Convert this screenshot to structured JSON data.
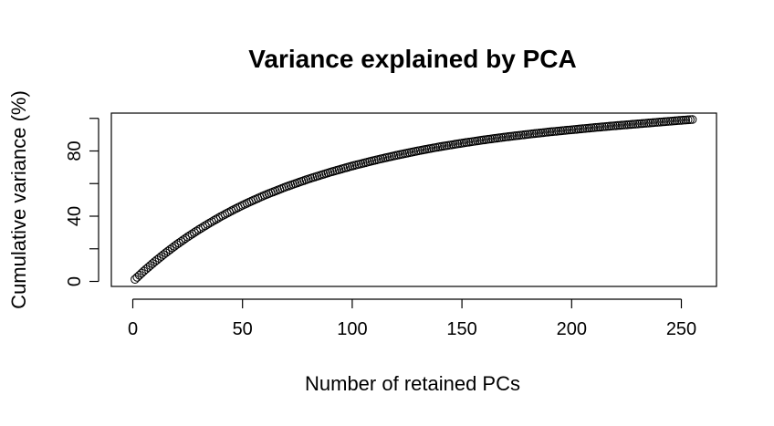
{
  "chart_data": {
    "type": "scatter",
    "title": "Variance explained by PCA",
    "xlabel": "Number of retained PCs",
    "ylabel": "Cumulative variance (%)",
    "xlim": [
      1,
      255
    ],
    "ylim": [
      0,
      100
    ],
    "xticks": [
      0,
      50,
      100,
      150,
      200,
      250
    ],
    "yticks": [
      0,
      40,
      80
    ],
    "ytick_minor": [
      20,
      60,
      100
    ],
    "grid": false,
    "legend": "none",
    "marker": "open-circle",
    "color": "#000000",
    "x_start": 1,
    "x_end": 255,
    "series": [
      {
        "points": [
          [
            1,
            1.3
          ],
          [
            5,
            6.3
          ],
          [
            10,
            12.1
          ],
          [
            15,
            17.5
          ],
          [
            20,
            22.6
          ],
          [
            25,
            27.3
          ],
          [
            30,
            31.7
          ],
          [
            35,
            35.8
          ],
          [
            40,
            39.7
          ],
          [
            45,
            43.3
          ],
          [
            50,
            46.7
          ],
          [
            55,
            49.8
          ],
          [
            60,
            52.8
          ],
          [
            70,
            58.1
          ],
          [
            80,
            62.8
          ],
          [
            90,
            67.0
          ],
          [
            100,
            70.8
          ],
          [
            110,
            74.2
          ],
          [
            120,
            77.3
          ],
          [
            130,
            80.1
          ],
          [
            140,
            82.6
          ],
          [
            150,
            84.8
          ],
          [
            160,
            86.8
          ],
          [
            170,
            88.6
          ],
          [
            180,
            90.2
          ],
          [
            190,
            91.7
          ],
          [
            200,
            93.0
          ],
          [
            210,
            94.3
          ],
          [
            220,
            95.5
          ],
          [
            230,
            96.6
          ],
          [
            240,
            97.7
          ],
          [
            250,
            98.8
          ],
          [
            255,
            99.3
          ]
        ]
      }
    ]
  }
}
